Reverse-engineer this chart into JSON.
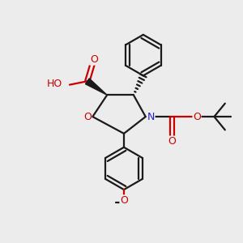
{
  "bg_color": "#ececec",
  "bond_color": "#1a1a1a",
  "oxygen_color": "#cc0000",
  "nitrogen_color": "#2222cc",
  "line_width": 1.6,
  "figsize": [
    3.0,
    3.0
  ],
  "dpi": 100,
  "xlim": [
    0,
    10
  ],
  "ylim": [
    0,
    10
  ]
}
